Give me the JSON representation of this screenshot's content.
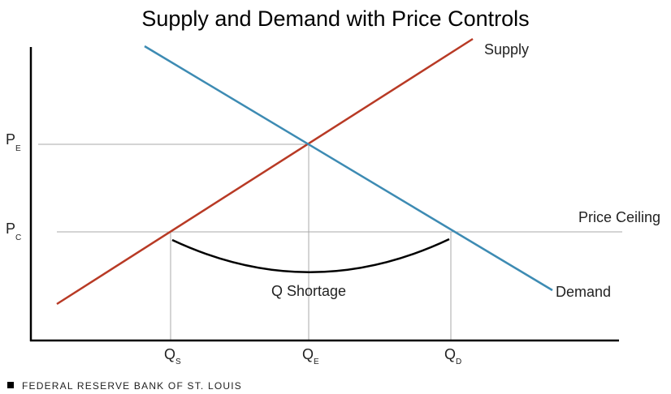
{
  "title": "Supply and Demand with Price Controls",
  "curves": {
    "supply": "Supply",
    "demand": "Demand",
    "price_ceiling": "Price Ceiling",
    "shortage": "Q Shortage"
  },
  "axis_labels": {
    "y": [
      {
        "main": "P",
        "sub": "E"
      },
      {
        "main": "P",
        "sub": "C"
      }
    ],
    "x": [
      {
        "main": "Q",
        "sub": "S"
      },
      {
        "main": "Q",
        "sub": "E"
      },
      {
        "main": "Q",
        "sub": "D"
      }
    ]
  },
  "footer": "FEDERAL RESERVE BANK OF ST. LOUIS"
}
